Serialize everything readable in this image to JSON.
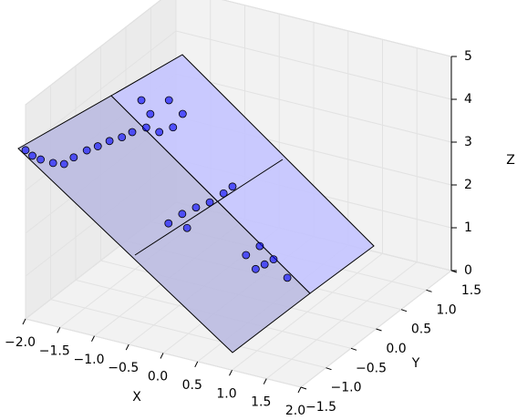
{
  "chart_data": {
    "type": "scatter3d",
    "x_label": "X",
    "y_label": "Y",
    "z_label": "Z",
    "xlim": [
      -2,
      2
    ],
    "ylim": [
      -1.5,
      1.5
    ],
    "zlim": [
      0,
      5
    ],
    "xticks": [
      {
        "value": -2,
        "label": "−2.0"
      },
      {
        "value": -1.5,
        "label": "−1.5"
      },
      {
        "value": -1,
        "label": "−1.0"
      },
      {
        "value": -0.5,
        "label": "−0.5"
      },
      {
        "value": 0,
        "label": "0.0"
      },
      {
        "value": 0.5,
        "label": "0.5"
      },
      {
        "value": 1,
        "label": "1.0"
      },
      {
        "value": 1.5,
        "label": "1.5"
      },
      {
        "value": 2,
        "label": "2.0"
      }
    ],
    "yticks": [
      {
        "value": -1.5,
        "label": "−1.5"
      },
      {
        "value": -1,
        "label": "−1.0"
      },
      {
        "value": -0.5,
        "label": "−0.5"
      },
      {
        "value": 0,
        "label": "0.0"
      },
      {
        "value": 0.5,
        "label": "0.5"
      },
      {
        "value": 1,
        "label": "1.0"
      },
      {
        "value": 1.5,
        "label": "1.5"
      }
    ],
    "zticks": [
      0,
      1,
      2,
      3,
      4,
      5
    ],
    "grid": true,
    "series": [
      {
        "color": "#0000ff",
        "x": [
          -2.0,
          -1.9,
          -1.78,
          -1.6,
          -1.44,
          -1.3,
          -1.11,
          -0.95,
          -0.78,
          -0.6,
          -0.45,
          -1.41,
          -1.34,
          -1.28,
          -1.15,
          -1.01,
          -0.95,
          -0.81,
          -0.47,
          -0.2,
          -0.27,
          -0.07,
          0.13,
          0.33,
          0.46,
          0.11,
          0.25,
          0.31,
          0.38,
          0.51,
          0.71
        ],
        "y": [
          -1.5,
          -1.5,
          -1.5,
          -1.5,
          -1.5,
          -1.5,
          -1.5,
          -1.5,
          -1.5,
          -1.5,
          -1.5,
          0,
          0,
          0,
          0,
          0,
          0,
          0,
          -0.75,
          -0.75,
          -0.75,
          -0.75,
          -0.75,
          -0.75,
          -0.75,
          0,
          0,
          0,
          0,
          0,
          0
        ],
        "z": [
          3.94,
          3.85,
          3.81,
          3.8,
          3.84,
          4.05,
          4.29,
          4.45,
          4.64,
          4.8,
          4.98,
          3.98,
          3.37,
          3.71,
          3.34,
          4.14,
          3.53,
          3.9,
          2.16,
          2.16,
          2.46,
          2.69,
          2.89,
          3.18,
          3.39,
          0.97,
          0.7,
          1.26,
          0.86,
          1.03,
          0.68
        ]
      }
    ]
  }
}
